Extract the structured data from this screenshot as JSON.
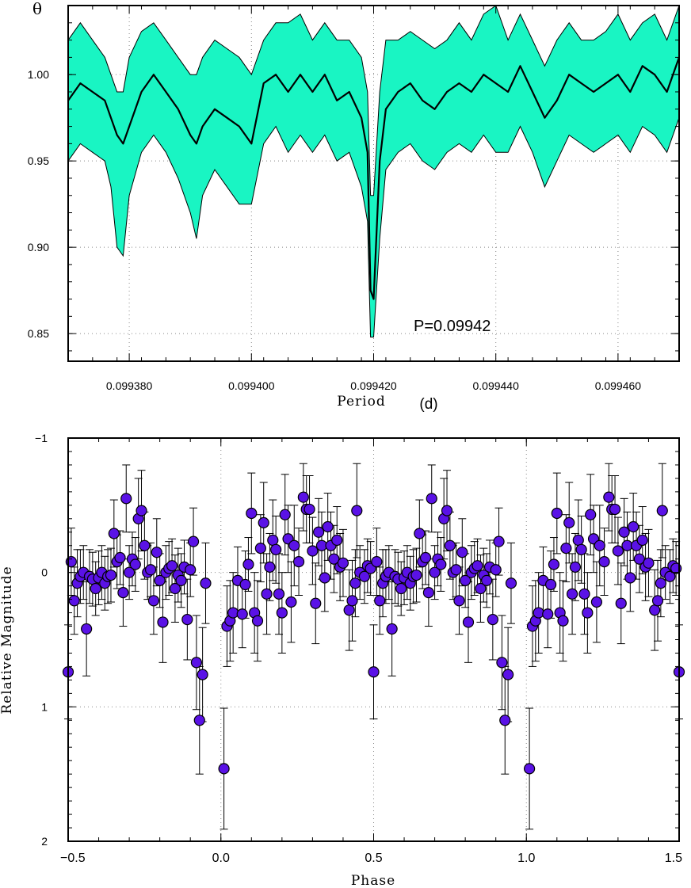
{
  "chart_data": [
    {
      "type": "line",
      "ylabel": "θ",
      "xlabel_main": "Period",
      "xlabel_unit": "(d)",
      "annotation": "P=0.09942",
      "xlim": [
        0.09937,
        0.09947
      ],
      "ylim": [
        0.834,
        1.04
      ],
      "x_ticks": [
        "0.099380",
        "0.099400",
        "0.099420",
        "0.099440",
        "0.099460"
      ],
      "y_ticks": [
        "0.85",
        "0.90",
        "0.95",
        "1.00"
      ],
      "grid": true,
      "band_color": "#19f5c3",
      "line_color": "#000000",
      "series": [
        {
          "x": [
            0.09937,
            0.099372,
            0.099374,
            0.099376,
            0.099377,
            0.099378,
            0.099379,
            0.09938,
            0.099382,
            0.099384,
            0.099386,
            0.099388,
            0.09939,
            0.099391,
            0.099392,
            0.099394,
            0.099396,
            0.099398,
            0.0994,
            0.099402,
            0.099404,
            0.099406,
            0.099408,
            0.09941,
            0.099412,
            0.099414,
            0.099416,
            0.099418,
            0.099419,
            0.0994195,
            0.09942,
            0.099421,
            0.099422,
            0.099424,
            0.099426,
            0.099428,
            0.09943,
            0.099432,
            0.099434,
            0.099436,
            0.099438,
            0.09944,
            0.099442,
            0.099444,
            0.099446,
            0.099448,
            0.09945,
            0.099452,
            0.099454,
            0.099456,
            0.099458,
            0.09946,
            0.099462,
            0.099464,
            0.099466,
            0.099468,
            0.09947
          ],
          "mean": [
            0.985,
            0.995,
            0.99,
            0.985,
            0.975,
            0.965,
            0.96,
            0.97,
            0.99,
            1.0,
            0.99,
            0.98,
            0.965,
            0.96,
            0.97,
            0.98,
            0.975,
            0.97,
            0.96,
            0.995,
            1.0,
            0.99,
            1.0,
            0.99,
            1.0,
            0.985,
            0.99,
            0.975,
            0.955,
            0.875,
            0.87,
            0.95,
            0.98,
            0.99,
            0.995,
            0.985,
            0.98,
            0.99,
            0.995,
            0.99,
            1.0,
            0.995,
            0.99,
            1.005,
            0.99,
            0.975,
            0.985,
            1.0,
            0.995,
            0.99,
            0.995,
            1.0,
            0.99,
            1.005,
            1.0,
            0.99,
            1.01
          ],
          "upper": [
            1.02,
            1.03,
            1.02,
            1.01,
            1.0,
            0.99,
            0.99,
            1.01,
            1.025,
            1.03,
            1.02,
            1.01,
            1.0,
            1.0,
            1.01,
            1.02,
            1.015,
            1.01,
            1.0,
            1.02,
            1.03,
            1.03,
            1.035,
            1.02,
            1.03,
            1.02,
            1.02,
            1.01,
            0.99,
            0.93,
            0.93,
            0.99,
            1.02,
            1.02,
            1.025,
            1.02,
            1.015,
            1.02,
            1.03,
            1.02,
            1.035,
            1.04,
            1.02,
            1.035,
            1.02,
            1.005,
            1.02,
            1.03,
            1.02,
            1.02,
            1.025,
            1.035,
            1.02,
            1.03,
            1.035,
            1.02,
            1.04
          ],
          "lower": [
            0.95,
            0.96,
            0.955,
            0.95,
            0.935,
            0.9,
            0.895,
            0.93,
            0.955,
            0.965,
            0.955,
            0.94,
            0.92,
            0.905,
            0.93,
            0.945,
            0.935,
            0.925,
            0.925,
            0.96,
            0.97,
            0.955,
            0.965,
            0.955,
            0.965,
            0.95,
            0.955,
            0.935,
            0.915,
            0.848,
            0.848,
            0.905,
            0.945,
            0.955,
            0.96,
            0.95,
            0.945,
            0.955,
            0.96,
            0.955,
            0.965,
            0.955,
            0.955,
            0.97,
            0.955,
            0.935,
            0.95,
            0.965,
            0.96,
            0.955,
            0.96,
            0.965,
            0.955,
            0.97,
            0.965,
            0.955,
            0.975
          ]
        }
      ]
    },
    {
      "type": "scatter",
      "xlabel": "Phase",
      "ylabel": "Relative Magnitude",
      "xlim": [
        -0.5,
        1.5
      ],
      "ylim": [
        2,
        -1
      ],
      "x_ticks": [
        "−0.5",
        "0.0",
        "0.5",
        "1.0",
        "1.5"
      ],
      "y_ticks": [
        "−1",
        "0",
        "1",
        "2"
      ],
      "grid": true,
      "marker_color": "#5a12e6",
      "points": [
        {
          "x": 0.01,
          "y": 1.46,
          "err": 0.45
        },
        {
          "x": 0.02,
          "y": 0.4,
          "err": 0.3
        },
        {
          "x": 0.03,
          "y": 0.36,
          "err": 0.3
        },
        {
          "x": 0.04,
          "y": 0.3,
          "err": 0.3
        },
        {
          "x": 0.055,
          "y": 0.06,
          "err": 0.25
        },
        {
          "x": 0.07,
          "y": 0.31,
          "err": 0.25
        },
        {
          "x": 0.08,
          "y": 0.09,
          "err": 0.25
        },
        {
          "x": 0.09,
          "y": -0.06,
          "err": 0.2
        },
        {
          "x": 0.1,
          "y": -0.44,
          "err": 0.3
        },
        {
          "x": 0.11,
          "y": 0.3,
          "err": 0.3
        },
        {
          "x": 0.12,
          "y": 0.36,
          "err": 0.3
        },
        {
          "x": 0.13,
          "y": -0.18,
          "err": 0.25
        },
        {
          "x": 0.14,
          "y": -0.37,
          "err": 0.3
        },
        {
          "x": 0.15,
          "y": 0.16,
          "err": 0.3
        },
        {
          "x": 0.16,
          "y": -0.04,
          "err": 0.25
        },
        {
          "x": 0.17,
          "y": -0.24,
          "err": 0.3
        },
        {
          "x": 0.18,
          "y": -0.17,
          "err": 0.25
        },
        {
          "x": 0.19,
          "y": 0.16,
          "err": 0.3
        },
        {
          "x": 0.2,
          "y": 0.3,
          "err": 0.3
        },
        {
          "x": 0.21,
          "y": -0.43,
          "err": 0.3
        },
        {
          "x": 0.22,
          "y": -0.25,
          "err": 0.25
        },
        {
          "x": 0.23,
          "y": 0.22,
          "err": 0.3
        },
        {
          "x": 0.24,
          "y": -0.2,
          "err": 0.3
        },
        {
          "x": 0.255,
          "y": -0.08,
          "err": 0.25
        },
        {
          "x": 0.27,
          "y": -0.56,
          "err": 0.25
        },
        {
          "x": 0.28,
          "y": -0.47,
          "err": 0.25
        },
        {
          "x": 0.29,
          "y": -0.47,
          "err": 0.25
        },
        {
          "x": 0.3,
          "y": -0.16,
          "err": 0.25
        },
        {
          "x": 0.31,
          "y": 0.23,
          "err": 0.3
        },
        {
          "x": 0.32,
          "y": -0.3,
          "err": 0.25
        },
        {
          "x": 0.33,
          "y": -0.2,
          "err": 0.25
        },
        {
          "x": 0.34,
          "y": 0.04,
          "err": 0.25
        },
        {
          "x": 0.35,
          "y": -0.34,
          "err": 0.25
        },
        {
          "x": 0.36,
          "y": -0.2,
          "err": 0.25
        },
        {
          "x": 0.37,
          "y": -0.1,
          "err": 0.25
        },
        {
          "x": 0.38,
          "y": -0.24,
          "err": 0.25
        },
        {
          "x": 0.39,
          "y": -0.04,
          "err": 0.25
        },
        {
          "x": 0.4,
          "y": -0.07,
          "err": 0.25
        },
        {
          "x": 0.42,
          "y": 0.28,
          "err": 0.3
        },
        {
          "x": 0.43,
          "y": 0.21,
          "err": 0.3
        },
        {
          "x": 0.44,
          "y": 0.08,
          "err": 0.25
        },
        {
          "x": 0.445,
          "y": -0.46,
          "err": 0.35
        },
        {
          "x": 0.455,
          "y": 0.0,
          "err": 0.2
        },
        {
          "x": 0.47,
          "y": 0.03,
          "err": 0.2
        },
        {
          "x": 0.48,
          "y": -0.05,
          "err": 0.2
        },
        {
          "x": 0.49,
          "y": -0.03,
          "err": 0.2
        },
        {
          "x": 0.5,
          "y": 0.74,
          "err": 0.35
        },
        {
          "x": 0.51,
          "y": -0.08,
          "err": 0.25
        },
        {
          "x": 0.52,
          "y": 0.21,
          "err": 0.25
        },
        {
          "x": 0.53,
          "y": 0.08,
          "err": 0.25
        },
        {
          "x": 0.54,
          "y": 0.03,
          "err": 0.2
        },
        {
          "x": 0.55,
          "y": 0.0,
          "err": 0.2
        },
        {
          "x": 0.56,
          "y": 0.42,
          "err": 0.35
        },
        {
          "x": 0.57,
          "y": 0.03,
          "err": 0.2
        },
        {
          "x": 0.58,
          "y": 0.05,
          "err": 0.2
        },
        {
          "x": 0.59,
          "y": 0.12,
          "err": 0.2
        },
        {
          "x": 0.6,
          "y": 0.04,
          "err": 0.2
        },
        {
          "x": 0.61,
          "y": 0.0,
          "err": 0.2
        },
        {
          "x": 0.62,
          "y": 0.08,
          "err": 0.2
        },
        {
          "x": 0.63,
          "y": 0.03,
          "err": 0.2
        },
        {
          "x": 0.64,
          "y": 0.02,
          "err": 0.2
        },
        {
          "x": 0.65,
          "y": -0.29,
          "err": 0.25
        },
        {
          "x": 0.66,
          "y": -0.08,
          "err": 0.2
        },
        {
          "x": 0.67,
          "y": -0.11,
          "err": 0.2
        },
        {
          "x": 0.68,
          "y": 0.15,
          "err": 0.25
        },
        {
          "x": 0.69,
          "y": -0.55,
          "err": 0.25
        },
        {
          "x": 0.7,
          "y": 0.0,
          "err": 0.2
        },
        {
          "x": 0.71,
          "y": -0.1,
          "err": 0.2
        },
        {
          "x": 0.72,
          "y": -0.06,
          "err": 0.2
        },
        {
          "x": 0.73,
          "y": -0.4,
          "err": 0.3
        },
        {
          "x": 0.74,
          "y": -0.46,
          "err": 0.3
        },
        {
          "x": 0.75,
          "y": -0.2,
          "err": 0.25
        },
        {
          "x": 0.76,
          "y": 0.0,
          "err": 0.2
        },
        {
          "x": 0.77,
          "y": -0.02,
          "err": 0.2
        },
        {
          "x": 0.78,
          "y": 0.21,
          "err": 0.25
        },
        {
          "x": 0.79,
          "y": -0.15,
          "err": 0.25
        },
        {
          "x": 0.8,
          "y": 0.06,
          "err": 0.2
        },
        {
          "x": 0.81,
          "y": 0.37,
          "err": 0.3
        },
        {
          "x": 0.82,
          "y": 0.0,
          "err": 0.2
        },
        {
          "x": 0.83,
          "y": -0.03,
          "err": 0.2
        },
        {
          "x": 0.84,
          "y": -0.05,
          "err": 0.2
        },
        {
          "x": 0.85,
          "y": 0.12,
          "err": 0.25
        },
        {
          "x": 0.86,
          "y": 0.02,
          "err": 0.2
        },
        {
          "x": 0.87,
          "y": 0.06,
          "err": 0.2
        },
        {
          "x": 0.88,
          "y": -0.04,
          "err": 0.2
        },
        {
          "x": 0.89,
          "y": 0.35,
          "err": 0.3
        },
        {
          "x": 0.9,
          "y": -0.02,
          "err": 0.2
        },
        {
          "x": 0.91,
          "y": -0.23,
          "err": 0.25
        },
        {
          "x": 0.92,
          "y": 0.67,
          "err": 0.35
        },
        {
          "x": 0.93,
          "y": 1.1,
          "err": 0.4
        },
        {
          "x": 0.94,
          "y": 0.76,
          "err": 0.35
        },
        {
          "x": 0.95,
          "y": 0.08,
          "err": 0.3
        }
      ]
    }
  ]
}
